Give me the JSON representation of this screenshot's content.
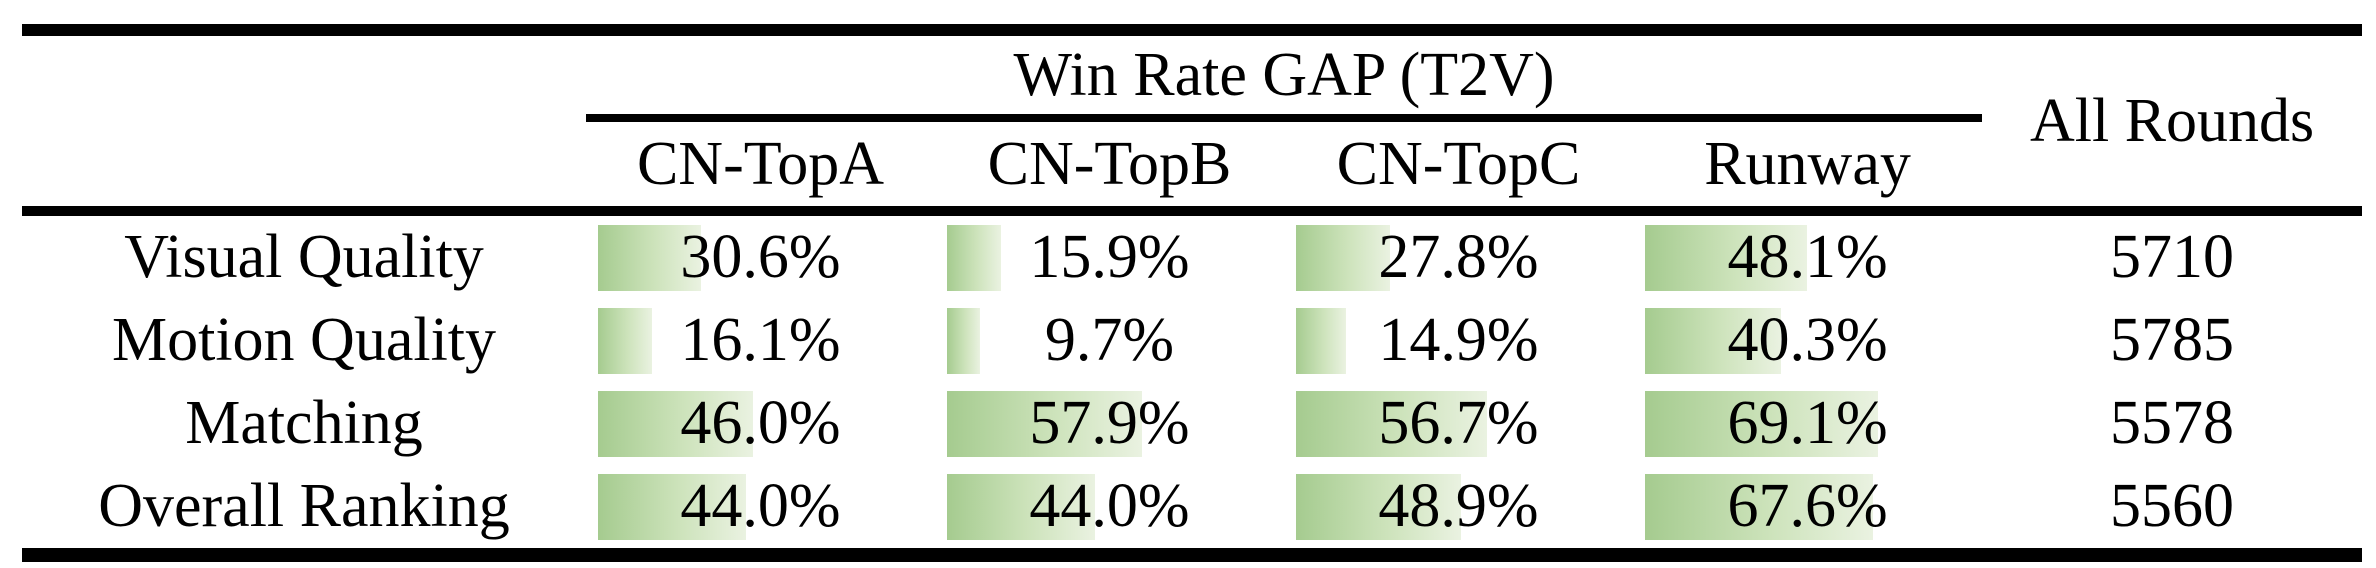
{
  "table": {
    "group_header": "Win Rate GAP (T2V)",
    "all_rounds_header": "All Rounds",
    "columns": [
      "CN-TopA",
      "CN-TopB",
      "CN-TopC",
      "Runway"
    ],
    "rows": [
      {
        "label": "Visual Quality",
        "cells": [
          {
            "value": 30.6,
            "display": "30.6%"
          },
          {
            "value": 15.9,
            "display": "15.9%"
          },
          {
            "value": 27.8,
            "display": "27.8%"
          },
          {
            "value": 48.1,
            "display": "48.1%"
          }
        ],
        "all_rounds": "5710"
      },
      {
        "label": "Motion Quality",
        "cells": [
          {
            "value": 16.1,
            "display": "16.1%"
          },
          {
            "value": 9.7,
            "display": "9.7%"
          },
          {
            "value": 14.9,
            "display": "14.9%"
          },
          {
            "value": 40.3,
            "display": "40.3%"
          }
        ],
        "all_rounds": "5785"
      },
      {
        "label": "Matching",
        "cells": [
          {
            "value": 46.0,
            "display": "46.0%"
          },
          {
            "value": 57.9,
            "display": "57.9%"
          },
          {
            "value": 56.7,
            "display": "56.7%"
          },
          {
            "value": 69.1,
            "display": "69.1%"
          }
        ],
        "all_rounds": "5578"
      },
      {
        "label": "Overall Ranking",
        "cells": [
          {
            "value": 44.0,
            "display": "44.0%"
          },
          {
            "value": 44.0,
            "display": "44.0%"
          },
          {
            "value": 48.9,
            "display": "48.9%"
          },
          {
            "value": 67.6,
            "display": "67.6%"
          }
        ],
        "all_rounds": "5560"
      }
    ],
    "colors": {
      "bar_gradient_start": "#a5cb8f",
      "bar_gradient_end": "#eaf2e1",
      "rule": "#000000",
      "text": "#000000",
      "background": "#ffffff"
    }
  },
  "chart_data": {
    "type": "table",
    "title": "Win Rate GAP (T2V)",
    "categories": [
      "Visual Quality",
      "Motion Quality",
      "Matching",
      "Overall Ranking"
    ],
    "series": [
      {
        "name": "CN-TopA",
        "values": [
          30.6,
          16.1,
          46.0,
          44.0
        ]
      },
      {
        "name": "CN-TopB",
        "values": [
          15.9,
          9.7,
          57.9,
          44.0
        ]
      },
      {
        "name": "CN-TopC",
        "values": [
          27.8,
          14.9,
          56.7,
          48.9
        ]
      },
      {
        "name": "Runway",
        "values": [
          48.1,
          40.3,
          69.1,
          67.6
        ]
      }
    ],
    "extra_column": {
      "name": "All Rounds",
      "values": [
        5710,
        5785,
        5578,
        5560
      ]
    },
    "unit": "%",
    "value_range": [
      0,
      100
    ],
    "note": "each percentage cell has a left-aligned green gradient bar whose width is proportional to the value"
  }
}
